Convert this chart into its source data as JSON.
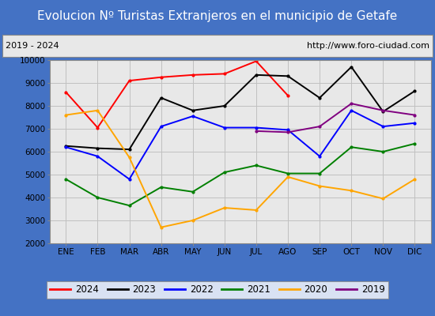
{
  "title": "Evolucion Nº Turistas Extranjeros en el municipio de Getafe",
  "subtitle_left": "2019 - 2024",
  "subtitle_right": "http://www.foro-ciudad.com",
  "x_labels": [
    "ENE",
    "FEB",
    "MAR",
    "ABR",
    "MAY",
    "JUN",
    "JUL",
    "AGO",
    "SEP",
    "OCT",
    "NOV",
    "DIC"
  ],
  "ylim": [
    2000,
    10000
  ],
  "yticks": [
    2000,
    3000,
    4000,
    5000,
    6000,
    7000,
    8000,
    9000,
    10000
  ],
  "series": {
    "2024": {
      "color": "red",
      "data": [
        8600,
        7050,
        9100,
        9250,
        9350,
        9400,
        9950,
        8450,
        null,
        null,
        null,
        null
      ]
    },
    "2023": {
      "color": "black",
      "data": [
        6250,
        6150,
        6100,
        8350,
        7800,
        8000,
        9350,
        9300,
        8350,
        9700,
        7750,
        8650
      ]
    },
    "2022": {
      "color": "blue",
      "data": [
        6200,
        5800,
        4800,
        7100,
        7550,
        7050,
        7050,
        6950,
        5800,
        7800,
        7100,
        7250
      ]
    },
    "2021": {
      "color": "green",
      "data": [
        4800,
        4000,
        3650,
        4450,
        4250,
        5100,
        5400,
        5050,
        5050,
        6200,
        6000,
        6350
      ]
    },
    "2020": {
      "color": "orange",
      "data": [
        7600,
        7800,
        5750,
        2700,
        3000,
        3550,
        3450,
        4900,
        4500,
        4300,
        3950,
        4800
      ]
    },
    "2019": {
      "color": "purple",
      "data": [
        null,
        null,
        null,
        null,
        null,
        null,
        6900,
        6850,
        7100,
        8100,
        7800,
        7600
      ]
    }
  },
  "title_bg_color": "#4472c4",
  "title_text_color": "white",
  "subtitle_bg_color": "#e8e8e8",
  "plot_bg_color": "#e8e8e8",
  "border_color": "#4472c4",
  "grid_color": "#c0c0c0",
  "title_fontsize": 11,
  "subtitle_fontsize": 8,
  "tick_fontsize": 7.5,
  "legend_fontsize": 8.5
}
